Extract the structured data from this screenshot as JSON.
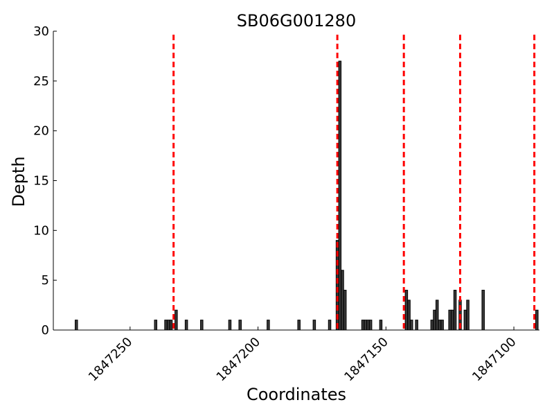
{
  "chart_data": {
    "type": "bar",
    "title": "SB06G001280",
    "xlabel": "Coordinates",
    "ylabel": "Depth",
    "x_reversed": true,
    "xlim": [
      1847280,
      1847090
    ],
    "ylim": [
      0,
      30
    ],
    "x_ticks": [
      1847250,
      1847200,
      1847150,
      1847100
    ],
    "x_tick_labels": [
      "1847250",
      "1847200",
      "1847150",
      "1847100"
    ],
    "y_ticks": [
      0,
      5,
      10,
      15,
      20,
      25,
      30
    ],
    "y_tick_labels": [
      "0",
      "5",
      "10",
      "15",
      "20",
      "25",
      "30"
    ],
    "bar_color": "#3a3a3a",
    "bar_edge_color": "#000000",
    "bar_width": 1,
    "bars": [
      {
        "x": 1847271,
        "y": 1
      },
      {
        "x": 1847240,
        "y": 1
      },
      {
        "x": 1847236,
        "y": 1
      },
      {
        "x": 1847235,
        "y": 1
      },
      {
        "x": 1847234,
        "y": 1
      },
      {
        "x": 1847232,
        "y": 2
      },
      {
        "x": 1847228,
        "y": 1
      },
      {
        "x": 1847222,
        "y": 1
      },
      {
        "x": 1847211,
        "y": 1
      },
      {
        "x": 1847207,
        "y": 1
      },
      {
        "x": 1847196,
        "y": 1
      },
      {
        "x": 1847184,
        "y": 1
      },
      {
        "x": 1847178,
        "y": 1
      },
      {
        "x": 1847172,
        "y": 1
      },
      {
        "x": 1847169,
        "y": 9
      },
      {
        "x": 1847168,
        "y": 27
      },
      {
        "x": 1847167,
        "y": 6
      },
      {
        "x": 1847166,
        "y": 4
      },
      {
        "x": 1847159,
        "y": 1
      },
      {
        "x": 1847158,
        "y": 1
      },
      {
        "x": 1847157,
        "y": 1
      },
      {
        "x": 1847156,
        "y": 1
      },
      {
        "x": 1847152,
        "y": 1
      },
      {
        "x": 1847142,
        "y": 4
      },
      {
        "x": 1847141,
        "y": 3
      },
      {
        "x": 1847140,
        "y": 1
      },
      {
        "x": 1847138,
        "y": 1
      },
      {
        "x": 1847132,
        "y": 1
      },
      {
        "x": 1847131,
        "y": 2
      },
      {
        "x": 1847130,
        "y": 3
      },
      {
        "x": 1847129,
        "y": 1
      },
      {
        "x": 1847128,
        "y": 1
      },
      {
        "x": 1847125,
        "y": 2
      },
      {
        "x": 1847124,
        "y": 2
      },
      {
        "x": 1847123,
        "y": 4
      },
      {
        "x": 1847121,
        "y": 3
      },
      {
        "x": 1847119,
        "y": 2
      },
      {
        "x": 1847118,
        "y": 3
      },
      {
        "x": 1847112,
        "y": 4
      },
      {
        "x": 1847091,
        "y": 2
      }
    ],
    "reference_lines": {
      "color": "#ff0000",
      "style": "dashed",
      "x": [
        1847233,
        1847169,
        1847143,
        1847121,
        1847092
      ]
    },
    "grid": false,
    "legend": "none"
  }
}
